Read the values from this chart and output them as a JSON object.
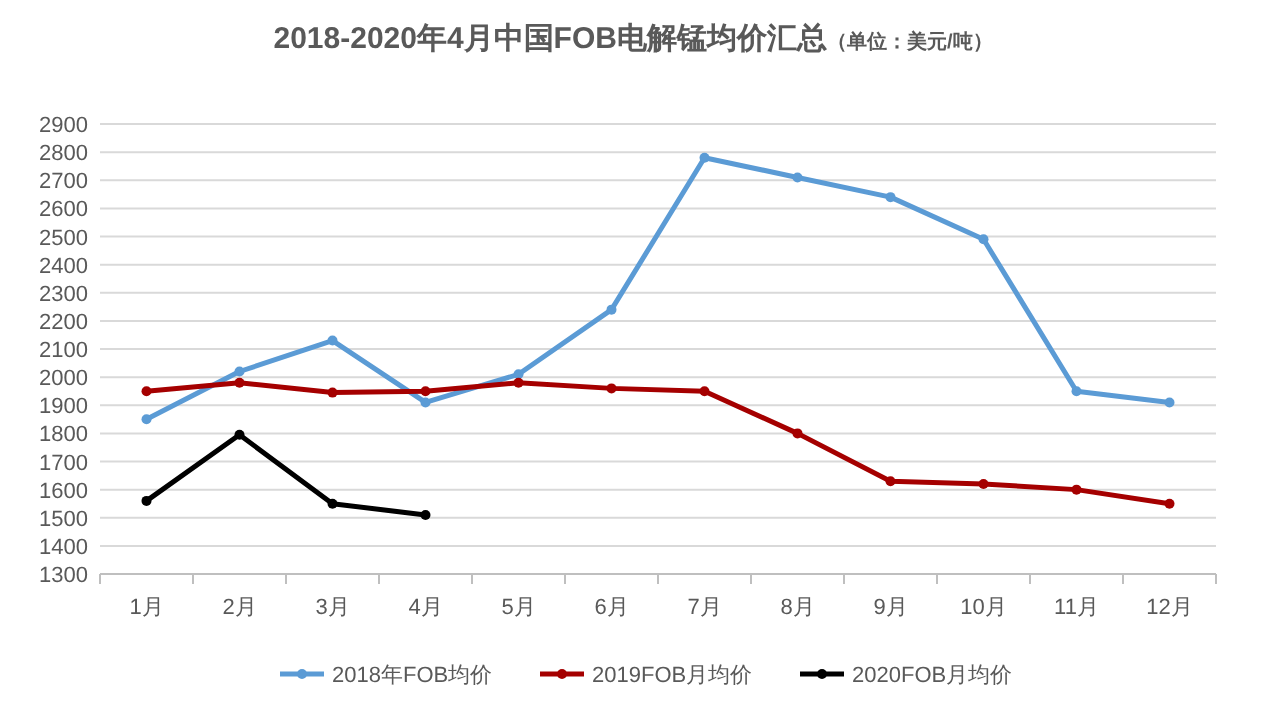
{
  "chart_data": {
    "type": "line",
    "title": "2018-2020年4月中国FOB电解锰均价汇总",
    "subtitle": "（单位：美元/吨）",
    "categories": [
      "1月",
      "2月",
      "3月",
      "4月",
      "5月",
      "6月",
      "7月",
      "8月",
      "9月",
      "10月",
      "11月",
      "12月"
    ],
    "series": [
      {
        "name": "2018年FOB均价",
        "color": "#5b9bd5",
        "values": [
          1850,
          2020,
          2130,
          1910,
          2010,
          2240,
          2780,
          2710,
          2640,
          2490,
          1950,
          1910
        ]
      },
      {
        "name": "2019FOB月均价",
        "color": "#a50000",
        "values": [
          1950,
          1980,
          1945,
          1950,
          1980,
          1960,
          1950,
          1800,
          1630,
          1620,
          1600,
          1550
        ]
      },
      {
        "name": "2020FOB月均价",
        "color": "#000000",
        "values": [
          1560,
          1795,
          1550,
          1510,
          null,
          null,
          null,
          null,
          null,
          null,
          null,
          null
        ]
      }
    ],
    "ylim": [
      1300,
      2900
    ],
    "yticks": [
      1300,
      1400,
      1500,
      1600,
      1700,
      1800,
      1900,
      2000,
      2100,
      2200,
      2300,
      2400,
      2500,
      2600,
      2700,
      2800,
      2900
    ],
    "grid": "y",
    "legend": "bottom",
    "marker": "circle",
    "line_style": "solid"
  }
}
